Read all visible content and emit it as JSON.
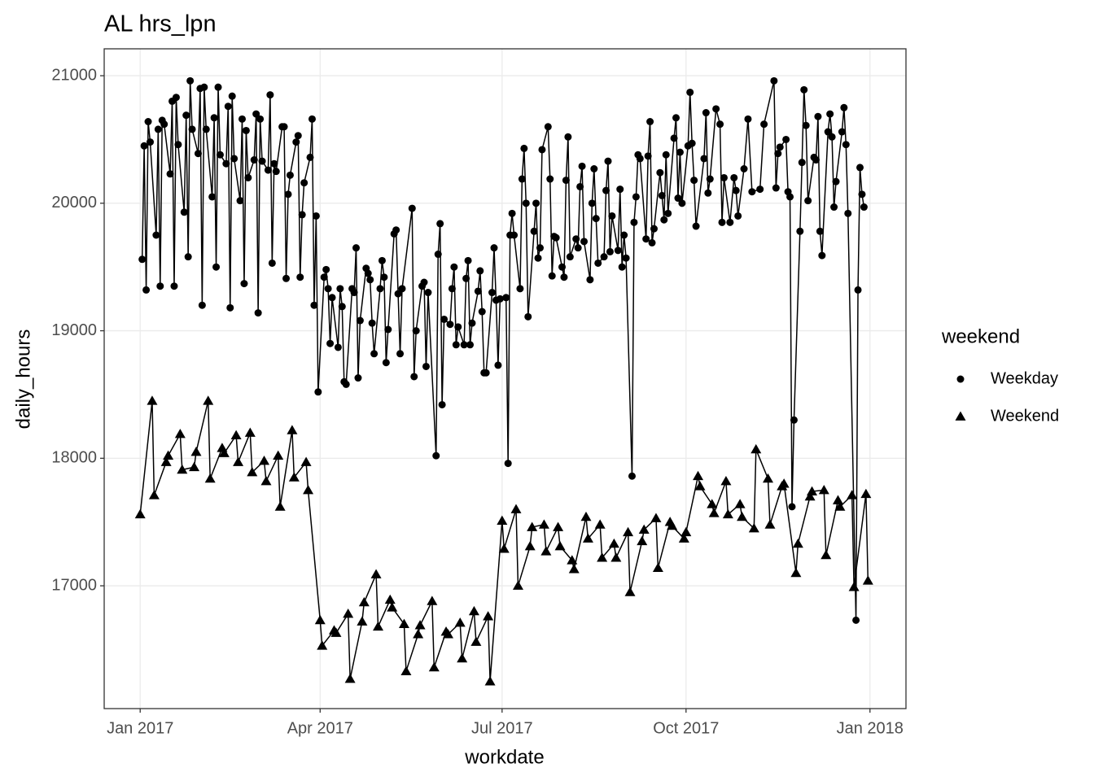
{
  "chart_data": {
    "type": "line",
    "title": "AL hrs_lpn",
    "x_label": "workdate",
    "y_label": "daily_hours",
    "legend_title": "weekend",
    "legend_position": "right",
    "grid": true,
    "xlim": [
      "2016-12-14",
      "2018-01-19"
    ],
    "xticks": [
      {
        "value": "2017-01-01",
        "label": "Jan 2017"
      },
      {
        "value": "2017-04-01",
        "label": "Apr 2017"
      },
      {
        "value": "2017-07-01",
        "label": "Jul 2017"
      },
      {
        "value": "2017-10-01",
        "label": "Oct 2017"
      },
      {
        "value": "2018-01-01",
        "label": "Jan 2018"
      }
    ],
    "ylim": [
      16037,
      21211
    ],
    "yticks": [
      17000,
      18000,
      19000,
      20000,
      21000
    ],
    "series": [
      {
        "name": "Weekday",
        "color": "#000000",
        "marker": "circle",
        "x": [
          "2017-01-02",
          "2017-01-03",
          "2017-01-04",
          "2017-01-05",
          "2017-01-06",
          "2017-01-09",
          "2017-01-10",
          "2017-01-11",
          "2017-01-12",
          "2017-01-13",
          "2017-01-16",
          "2017-01-17",
          "2017-01-18",
          "2017-01-19",
          "2017-01-20",
          "2017-01-23",
          "2017-01-24",
          "2017-01-25",
          "2017-01-26",
          "2017-01-27",
          "2017-01-30",
          "2017-01-31",
          "2017-02-01",
          "2017-02-02",
          "2017-02-03",
          "2017-02-06",
          "2017-02-07",
          "2017-02-08",
          "2017-02-09",
          "2017-02-10",
          "2017-02-13",
          "2017-02-14",
          "2017-02-15",
          "2017-02-16",
          "2017-02-17",
          "2017-02-20",
          "2017-02-21",
          "2017-02-22",
          "2017-02-23",
          "2017-02-24",
          "2017-02-27",
          "2017-02-28",
          "2017-03-01",
          "2017-03-02",
          "2017-03-03",
          "2017-03-06",
          "2017-03-07",
          "2017-03-08",
          "2017-03-09",
          "2017-03-10",
          "2017-03-13",
          "2017-03-14",
          "2017-03-15",
          "2017-03-16",
          "2017-03-17",
          "2017-03-20",
          "2017-03-21",
          "2017-03-22",
          "2017-03-23",
          "2017-03-24",
          "2017-03-27",
          "2017-03-28",
          "2017-03-29",
          "2017-03-30",
          "2017-03-31",
          "2017-04-03",
          "2017-04-04",
          "2017-04-05",
          "2017-04-06",
          "2017-04-07",
          "2017-04-10",
          "2017-04-11",
          "2017-04-12",
          "2017-04-13",
          "2017-04-14",
          "2017-04-17",
          "2017-04-18",
          "2017-04-19",
          "2017-04-20",
          "2017-04-21",
          "2017-04-24",
          "2017-04-25",
          "2017-04-26",
          "2017-04-27",
          "2017-04-28",
          "2017-05-01",
          "2017-05-02",
          "2017-05-03",
          "2017-05-04",
          "2017-05-05",
          "2017-05-08",
          "2017-05-09",
          "2017-05-10",
          "2017-05-11",
          "2017-05-12",
          "2017-05-17",
          "2017-05-18",
          "2017-05-19",
          "2017-05-22",
          "2017-05-23",
          "2017-05-24",
          "2017-05-25",
          "2017-05-29",
          "2017-05-30",
          "2017-05-31",
          "2017-06-01",
          "2017-06-02",
          "2017-06-05",
          "2017-06-06",
          "2017-06-07",
          "2017-06-08",
          "2017-06-09",
          "2017-06-12",
          "2017-06-13",
          "2017-06-14",
          "2017-06-15",
          "2017-06-16",
          "2017-06-19",
          "2017-06-20",
          "2017-06-21",
          "2017-06-22",
          "2017-06-23",
          "2017-06-26",
          "2017-06-27",
          "2017-06-28",
          "2017-06-29",
          "2017-06-30",
          "2017-07-03",
          "2017-07-04",
          "2017-07-05",
          "2017-07-06",
          "2017-07-07",
          "2017-07-10",
          "2017-07-11",
          "2017-07-12",
          "2017-07-13",
          "2017-07-14",
          "2017-07-17",
          "2017-07-18",
          "2017-07-19",
          "2017-07-20",
          "2017-07-21",
          "2017-07-24",
          "2017-07-25",
          "2017-07-26",
          "2017-07-27",
          "2017-07-28",
          "2017-07-31",
          "2017-08-01",
          "2017-08-02",
          "2017-08-03",
          "2017-08-04",
          "2017-08-07",
          "2017-08-08",
          "2017-08-09",
          "2017-08-10",
          "2017-08-11",
          "2017-08-14",
          "2017-08-15",
          "2017-08-16",
          "2017-08-17",
          "2017-08-18",
          "2017-08-21",
          "2017-08-22",
          "2017-08-23",
          "2017-08-24",
          "2017-08-25",
          "2017-08-28",
          "2017-08-29",
          "2017-08-30",
          "2017-08-31",
          "2017-09-01",
          "2017-09-04",
          "2017-09-05",
          "2017-09-06",
          "2017-09-07",
          "2017-09-08",
          "2017-09-11",
          "2017-09-12",
          "2017-09-13",
          "2017-09-14",
          "2017-09-15",
          "2017-09-18",
          "2017-09-19",
          "2017-09-20",
          "2017-09-21",
          "2017-09-22",
          "2017-09-25",
          "2017-09-26",
          "2017-09-27",
          "2017-09-28",
          "2017-09-29",
          "2017-10-02",
          "2017-10-03",
          "2017-10-04",
          "2017-10-05",
          "2017-10-06",
          "2017-10-10",
          "2017-10-11",
          "2017-10-12",
          "2017-10-13",
          "2017-10-16",
          "2017-10-18",
          "2017-10-19",
          "2017-10-20",
          "2017-10-23",
          "2017-10-25",
          "2017-10-26",
          "2017-10-27",
          "2017-10-30",
          "2017-11-01",
          "2017-11-03",
          "2017-11-07",
          "2017-11-09",
          "2017-11-14",
          "2017-11-15",
          "2017-11-16",
          "2017-11-17",
          "2017-11-20",
          "2017-11-21",
          "2017-11-22",
          "2017-11-23",
          "2017-11-24",
          "2017-11-27",
          "2017-11-28",
          "2017-11-29",
          "2017-11-30",
          "2017-12-01",
          "2017-12-04",
          "2017-12-05",
          "2017-12-06",
          "2017-12-07",
          "2017-12-08",
          "2017-12-11",
          "2017-12-12",
          "2017-12-13",
          "2017-12-14",
          "2017-12-15",
          "2017-12-18",
          "2017-12-19",
          "2017-12-20",
          "2017-12-21",
          "2017-12-25",
          "2017-12-26",
          "2017-12-27",
          "2017-12-28",
          "2017-12-29"
        ],
        "values": [
          19560,
          20450,
          19320,
          20640,
          20480,
          19750,
          20580,
          19350,
          20650,
          20620,
          20230,
          20800,
          19350,
          20830,
          20460,
          19930,
          20690,
          19580,
          20960,
          20580,
          20390,
          20900,
          19200,
          20910,
          20580,
          20050,
          20670,
          19500,
          20910,
          20380,
          20310,
          20760,
          19180,
          20840,
          20350,
          20020,
          20660,
          19370,
          20570,
          20200,
          20340,
          20700,
          19140,
          20660,
          20330,
          20260,
          20850,
          19530,
          20310,
          20250,
          20600,
          20600,
          19410,
          20070,
          20220,
          20480,
          20530,
          19420,
          19910,
          20160,
          20360,
          20660,
          19200,
          19900,
          18520,
          19420,
          19480,
          19330,
          18900,
          19260,
          18870,
          19330,
          19190,
          18600,
          18580,
          19330,
          19300,
          19650,
          18630,
          19080,
          19490,
          19450,
          19400,
          19060,
          18820,
          19330,
          19550,
          19420,
          18750,
          19010,
          19760,
          19790,
          19290,
          18820,
          19330,
          19960,
          18640,
          19000,
          19350,
          19380,
          18720,
          19300,
          18020,
          19600,
          19840,
          18420,
          19090,
          19050,
          19330,
          19500,
          18890,
          19030,
          18890,
          19410,
          19550,
          18890,
          19060,
          19310,
          19470,
          19150,
          18670,
          18670,
          19300,
          19650,
          19240,
          18730,
          19250,
          19260,
          17960,
          19750,
          19920,
          19750,
          19330,
          20190,
          20430,
          20000,
          19110,
          19780,
          20000,
          19570,
          19650,
          20420,
          20600,
          20190,
          19430,
          19740,
          19730,
          19500,
          19420,
          20180,
          20520,
          19580,
          19720,
          19650,
          20130,
          20290,
          19700,
          19400,
          20000,
          20270,
          19880,
          19530,
          19580,
          20100,
          20330,
          19620,
          19900,
          19630,
          20110,
          19500,
          19750,
          19570,
          17860,
          19850,
          20050,
          20380,
          20350,
          19720,
          20370,
          20640,
          19690,
          19800,
          20240,
          20060,
          19870,
          20380,
          19920,
          20510,
          20670,
          20040,
          20400,
          20000,
          20450,
          20870,
          20470,
          20180,
          19820,
          20350,
          20710,
          20080,
          20190,
          20740,
          20620,
          19850,
          20200,
          19850,
          20200,
          20100,
          19900,
          20270,
          20660,
          20090,
          20110,
          20620,
          20960,
          20120,
          20390,
          20440,
          20500,
          20090,
          20050,
          17620,
          18300,
          19780,
          20320,
          20890,
          20610,
          20020,
          20360,
          20340,
          20680,
          19780,
          19590,
          20560,
          20700,
          20520,
          19970,
          20170,
          20560,
          20750,
          20460,
          19920,
          16730,
          19320,
          20280,
          20070,
          19970
        ]
      },
      {
        "name": "Weekend",
        "color": "#000000",
        "marker": "triangle",
        "x": [
          "2017-01-01",
          "2017-01-07",
          "2017-01-08",
          "2017-01-14",
          "2017-01-15",
          "2017-01-21",
          "2017-01-22",
          "2017-01-28",
          "2017-01-29",
          "2017-02-04",
          "2017-02-05",
          "2017-02-11",
          "2017-02-12",
          "2017-02-18",
          "2017-02-19",
          "2017-02-25",
          "2017-02-26",
          "2017-03-04",
          "2017-03-05",
          "2017-03-11",
          "2017-03-12",
          "2017-03-18",
          "2017-03-19",
          "2017-03-25",
          "2017-03-26",
          "2017-04-01",
          "2017-04-02",
          "2017-04-08",
          "2017-04-09",
          "2017-04-15",
          "2017-04-16",
          "2017-04-22",
          "2017-04-23",
          "2017-04-29",
          "2017-04-30",
          "2017-05-06",
          "2017-05-07",
          "2017-05-13",
          "2017-05-14",
          "2017-05-20",
          "2017-05-21",
          "2017-05-27",
          "2017-05-28",
          "2017-06-03",
          "2017-06-04",
          "2017-06-10",
          "2017-06-11",
          "2017-06-17",
          "2017-06-18",
          "2017-06-24",
          "2017-06-25",
          "2017-07-01",
          "2017-07-02",
          "2017-07-08",
          "2017-07-09",
          "2017-07-15",
          "2017-07-16",
          "2017-07-22",
          "2017-07-23",
          "2017-07-29",
          "2017-07-30",
          "2017-08-05",
          "2017-08-06",
          "2017-08-12",
          "2017-08-13",
          "2017-08-19",
          "2017-08-20",
          "2017-08-26",
          "2017-08-27",
          "2017-09-02",
          "2017-09-03",
          "2017-09-09",
          "2017-09-10",
          "2017-09-16",
          "2017-09-17",
          "2017-09-23",
          "2017-09-24",
          "2017-09-30",
          "2017-10-01",
          "2017-10-07",
          "2017-10-08",
          "2017-10-14",
          "2017-10-15",
          "2017-10-21",
          "2017-10-22",
          "2017-10-28",
          "2017-10-29",
          "2017-11-04",
          "2017-11-05",
          "2017-11-11",
          "2017-11-12",
          "2017-11-18",
          "2017-11-19",
          "2017-11-25",
          "2017-11-26",
          "2017-12-02",
          "2017-12-03",
          "2017-12-09",
          "2017-12-10",
          "2017-12-16",
          "2017-12-17",
          "2017-12-23",
          "2017-12-24",
          "2017-12-30",
          "2017-12-31"
        ],
        "values": [
          17560,
          18450,
          17710,
          17970,
          18020,
          18190,
          17910,
          17930,
          18050,
          18450,
          17840,
          18080,
          18040,
          18180,
          17970,
          18200,
          17890,
          17980,
          17820,
          18020,
          17620,
          18220,
          17850,
          17970,
          17750,
          16730,
          16530,
          16650,
          16630,
          16780,
          16270,
          16720,
          16870,
          17090,
          16680,
          16890,
          16830,
          16700,
          16330,
          16620,
          16690,
          16880,
          16360,
          16640,
          16620,
          16710,
          16430,
          16800,
          16560,
          16760,
          16250,
          17510,
          17290,
          17600,
          17000,
          17310,
          17460,
          17480,
          17270,
          17460,
          17310,
          17200,
          17130,
          17540,
          17370,
          17480,
          17220,
          17330,
          17220,
          17420,
          16950,
          17350,
          17440,
          17530,
          17140,
          17500,
          17470,
          17370,
          17420,
          17860,
          17780,
          17640,
          17570,
          17820,
          17560,
          17640,
          17540,
          17450,
          18070,
          17840,
          17480,
          17780,
          17800,
          17100,
          17330,
          17700,
          17740,
          17750,
          17240,
          17670,
          17620,
          17710,
          16990,
          17720,
          17040
        ]
      }
    ]
  }
}
